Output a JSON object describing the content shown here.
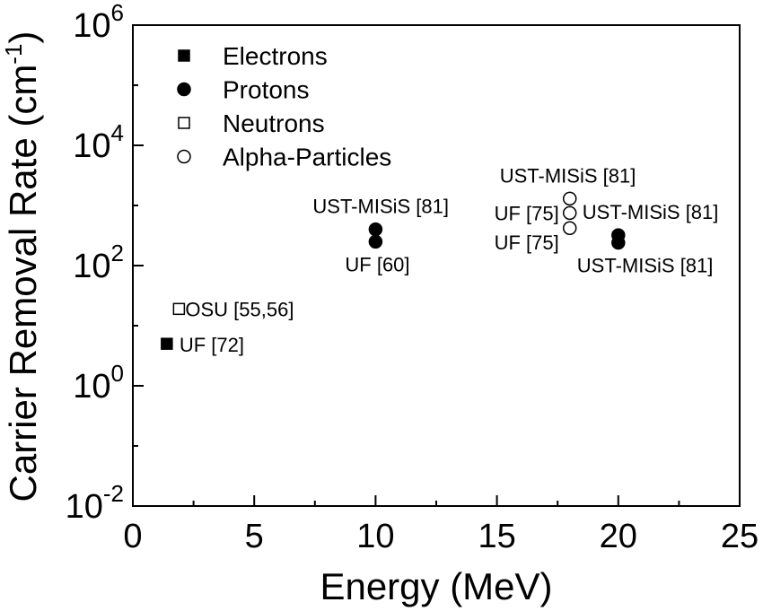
{
  "chart_data": {
    "type": "scatter",
    "xlabel": "Energy (MeV)",
    "ylabel": "Carrier Removal Rate (cm",
    "ylabel_superscript": "-1",
    "ylabel_suffix": ")",
    "xlim": [
      0,
      25
    ],
    "ylim": [
      0.01,
      1000000
    ],
    "y_scale": "log",
    "x_ticks": [
      0,
      5,
      10,
      15,
      20,
      25
    ],
    "x_tick_labels": [
      "0",
      "5",
      "10",
      "15",
      "20",
      "25"
    ],
    "y_major_ticks": [
      {
        "value": 0.01,
        "base": "10",
        "exp": "-2"
      },
      {
        "value": 1,
        "base": "10",
        "exp": "0"
      },
      {
        "value": 100,
        "base": "10",
        "exp": "2"
      },
      {
        "value": 10000,
        "base": "10",
        "exp": "4"
      },
      {
        "value": 1000000,
        "base": "10",
        "exp": "6"
      }
    ],
    "grid": false,
    "legend_position": "top-left",
    "series": [
      {
        "name": "Electrons",
        "marker": "filled-square",
        "points": [
          {
            "x": 1.4,
            "y": 5,
            "label": "UF [72]"
          }
        ]
      },
      {
        "name": "Protons",
        "marker": "filled-circle",
        "points": [
          {
            "x": 10,
            "y": 400,
            "label": "UST-MISiS [81]"
          },
          {
            "x": 10,
            "y": 250,
            "label": "UF [60]"
          },
          {
            "x": 20,
            "y": 320,
            "label": "UST-MISiS [81]"
          },
          {
            "x": 20,
            "y": 240,
            "label": "UST-MISiS [81]"
          }
        ]
      },
      {
        "name": "Neutrons",
        "marker": "open-square",
        "points": [
          {
            "x": 1.9,
            "y": 19,
            "label": "OSU [55,56]"
          }
        ]
      },
      {
        "name": "Alpha-Particles",
        "marker": "open-circle",
        "points": [
          {
            "x": 18,
            "y": 1300,
            "label": "UST-MISiS [81]"
          },
          {
            "x": 18,
            "y": 750,
            "label": "UF [75]"
          },
          {
            "x": 18,
            "y": 420,
            "label": "UF [75]"
          }
        ]
      }
    ]
  }
}
